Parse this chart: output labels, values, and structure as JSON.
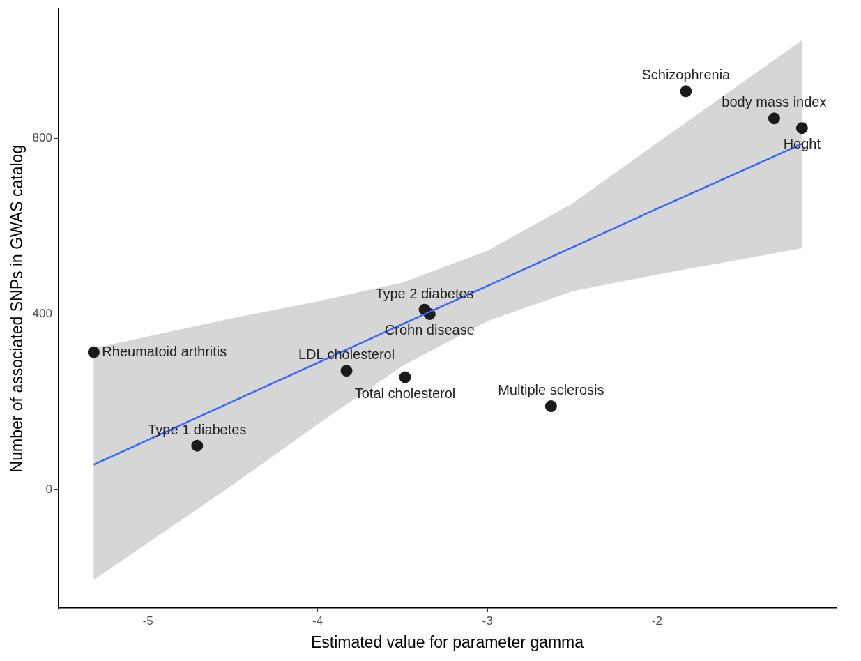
{
  "chart_data": {
    "type": "scatter",
    "xlabel": "Estimated value for parameter gamma",
    "ylabel": "Number of associated SNPs in GWAS catalog",
    "xlim": [
      -5.527,
      -0.946
    ],
    "ylim": [
      -270,
      1095
    ],
    "xticks": [
      -5,
      -4,
      -3,
      -2
    ],
    "yticks": [
      0,
      400,
      800
    ],
    "grid": false,
    "legend": false,
    "marker": "circle",
    "series": [
      {
        "type": "scatter",
        "color": "#1a1a1a",
        "x": [
          -5.32,
          -4.71,
          -3.83,
          -3.485,
          -3.37,
          -3.34,
          -2.625,
          -1.83,
          -1.31,
          -1.146
        ],
        "values": [
          313,
          100,
          271,
          256,
          410,
          400,
          190,
          908,
          846,
          824
        ]
      },
      {
        "type": "line",
        "marker": "none",
        "color": "#3366ff",
        "x": [
          -5.32,
          -4.5,
          -4,
          -3.5,
          -3,
          -2.5,
          -2,
          -1.146
        ],
        "values": [
          57,
          201,
          289,
          377,
          464,
          552,
          640,
          788
        ],
        "lower": [
          -206,
          11,
          149,
          282,
          384,
          452,
          490,
          550
        ],
        "upper": [
          322,
          391,
          429,
          472,
          544,
          652,
          790,
          1024
        ]
      }
    ],
    "annotations": [
      {
        "text": "Rheumatoid arthritis",
        "x": -5.32,
        "y": 313
      },
      {
        "text": "Type 1 diabetes",
        "x": -4.71,
        "y": 100
      },
      {
        "text": "LDL cholesterol",
        "x": -3.83,
        "y": 271
      },
      {
        "text": "Total cholesterol",
        "x": -3.485,
        "y": 256
      },
      {
        "text": "Type 2 diabetes",
        "x": -3.37,
        "y": 410
      },
      {
        "text": "Crohn disease",
        "x": -3.34,
        "y": 400
      },
      {
        "text": "Multiple sclerosis",
        "x": -2.625,
        "y": 190
      },
      {
        "text": "Schizophrenia",
        "x": -1.83,
        "y": 908
      },
      {
        "text": "body mass index",
        "x": -1.31,
        "y": 846
      },
      {
        "text": "Heght",
        "x": -1.146,
        "y": 824
      }
    ]
  }
}
